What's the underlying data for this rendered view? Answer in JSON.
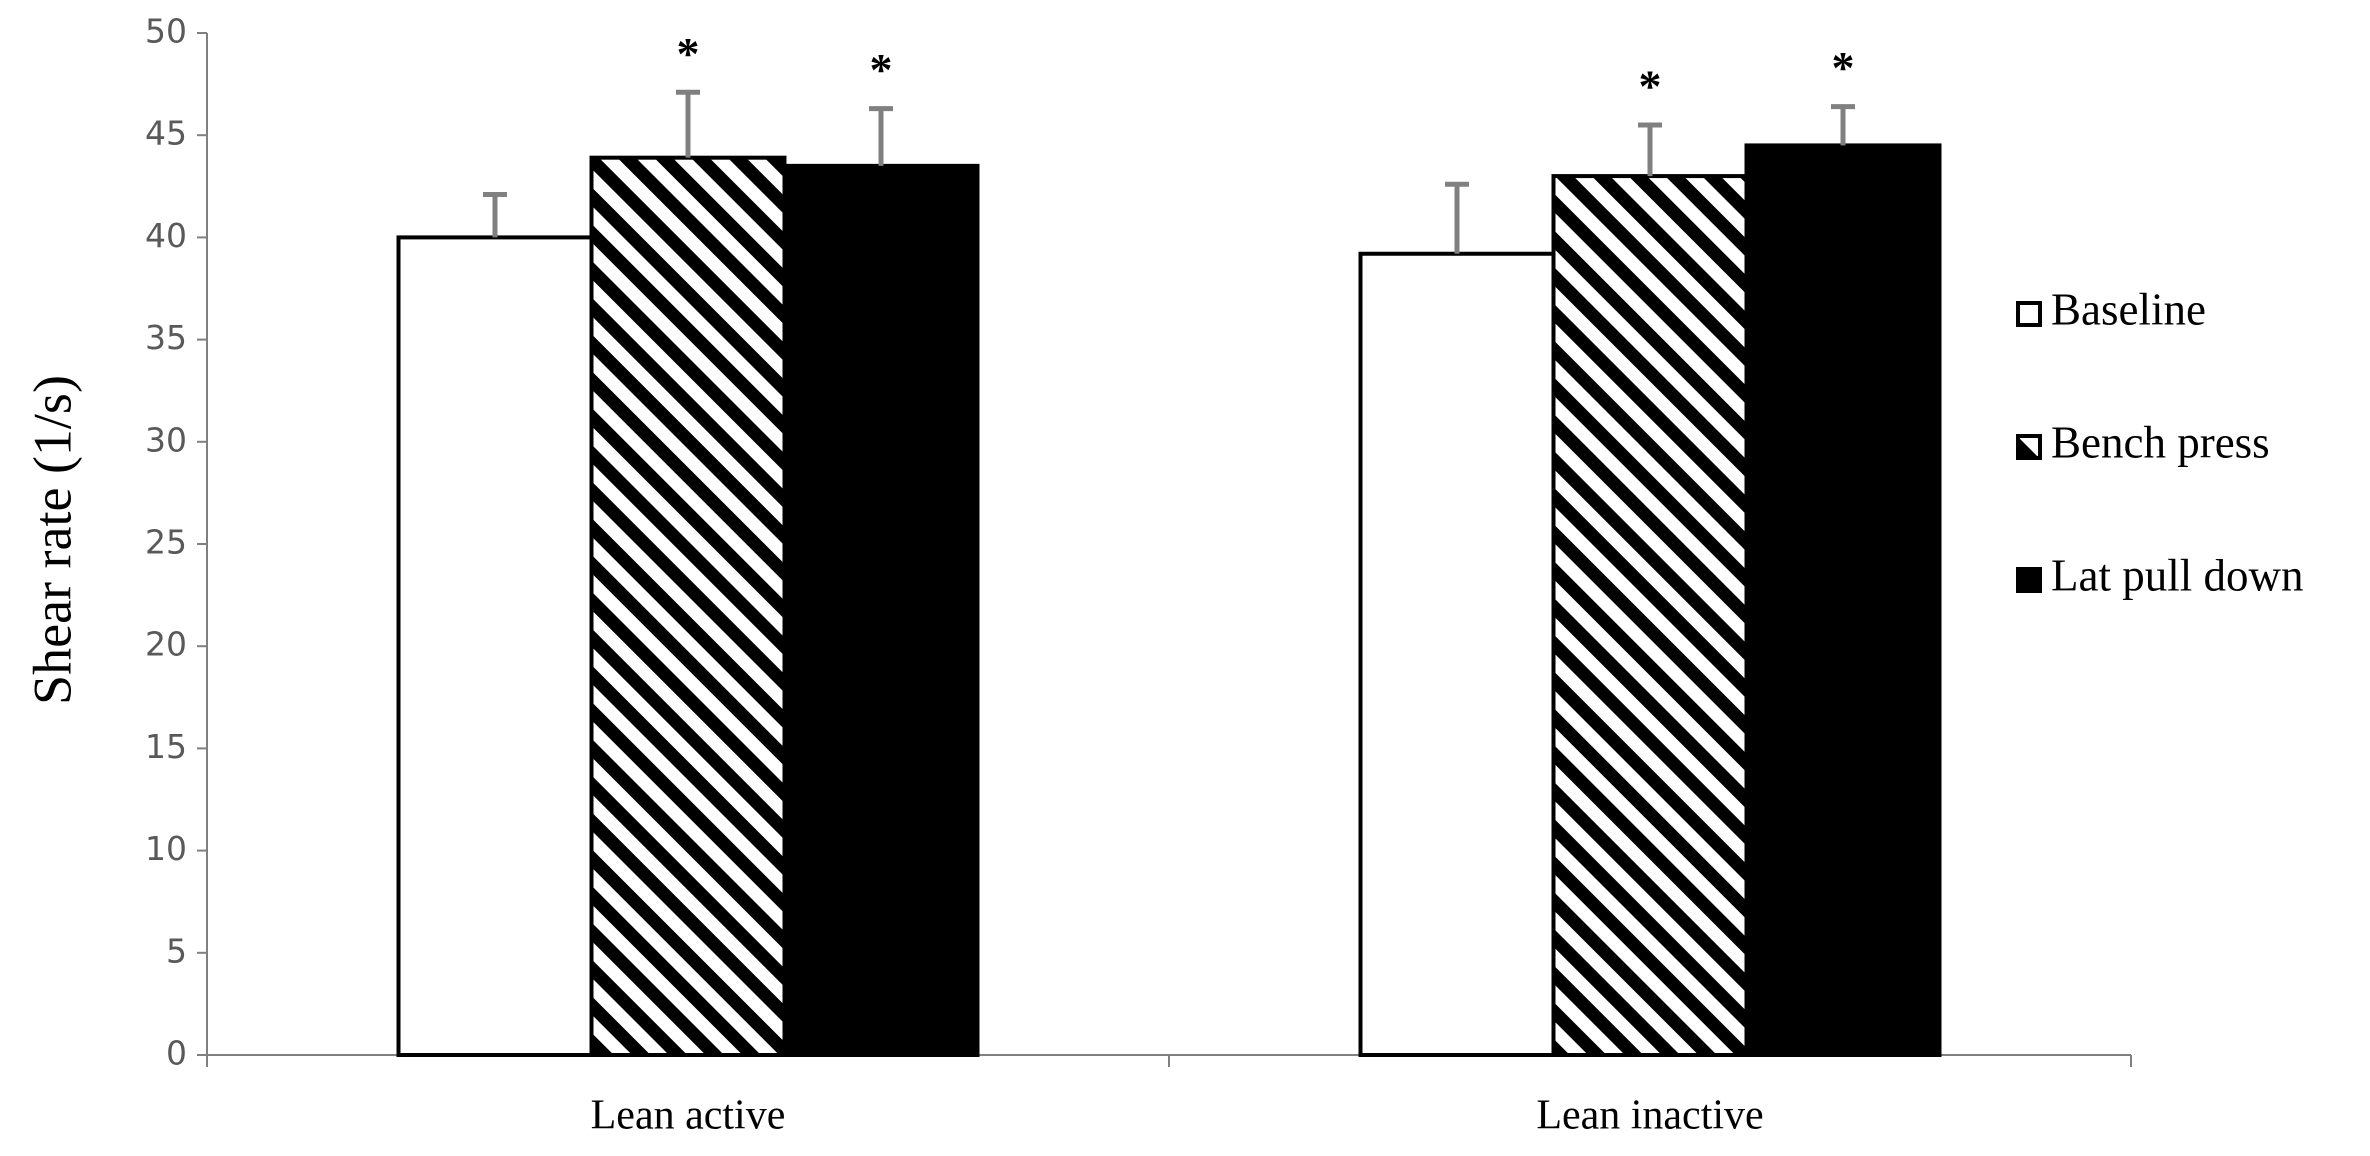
{
  "chart_data": {
    "type": "bar",
    "y_label": "Shear rate (1/s)",
    "categories": [
      "Lean active",
      "Lean inactive"
    ],
    "series": [
      {
        "name": "Baseline",
        "color": "#ffffff",
        "values": [
          40.0,
          39.2
        ],
        "errors": [
          2.1,
          3.4
        ]
      },
      {
        "name": "Bench press",
        "color": "#000000",
        "pattern": "diagonal-stripes",
        "values": [
          43.9,
          43.0
        ],
        "errors": [
          3.2,
          2.5
        ],
        "markers": [
          "*",
          "*"
        ]
      },
      {
        "name": "Lat pull down",
        "color": "#000000",
        "values": [
          43.5,
          44.5
        ],
        "errors": [
          2.8,
          1.9
        ],
        "markers": [
          "*",
          "*"
        ]
      }
    ],
    "error_color": "#808080",
    "ylim": [
      0,
      50
    ],
    "yticks": [
      0,
      5,
      10,
      15,
      20,
      25,
      30,
      35,
      40,
      45,
      50
    ],
    "grid": false,
    "legend": "right"
  }
}
